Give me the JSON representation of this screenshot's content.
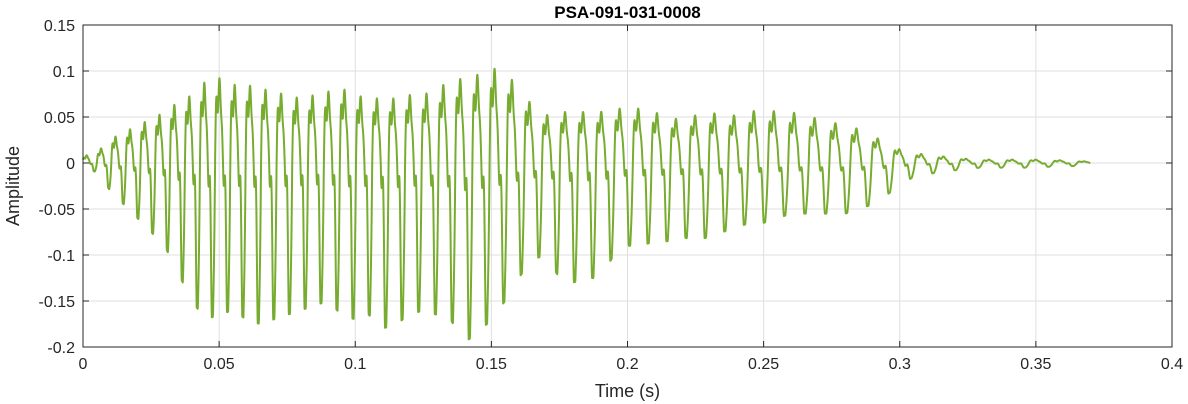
{
  "chart_data": {
    "type": "line",
    "title": "PSA-091-031-0008",
    "xlabel": "Time (s)",
    "ylabel": "Amplitude",
    "xlim": [
      0,
      0.4
    ],
    "ylim": [
      -0.2,
      0.15
    ],
    "xticks": [
      "0",
      "0.05",
      "0.1",
      "0.15",
      "0.2",
      "0.25",
      "0.3",
      "0.35",
      "0.4"
    ],
    "yticks": [
      "0.15",
      "0.1",
      "0.05",
      "0",
      "-0.05",
      "-0.1",
      "-0.15",
      "-0.2"
    ],
    "grid": true,
    "line_color": "#77AC30",
    "series": [
      {
        "x_range": [
          0,
          0.37
        ],
        "envelope": {
          "t": [
            0,
            0.005,
            0.01,
            0.015,
            0.02,
            0.025,
            0.03,
            0.035,
            0.04,
            0.045,
            0.05,
            0.055,
            0.06,
            0.065,
            0.07,
            0.075,
            0.08,
            0.085,
            0.09,
            0.095,
            0.1,
            0.105,
            0.11,
            0.115,
            0.12,
            0.125,
            0.13,
            0.135,
            0.14,
            0.145,
            0.15,
            0.155,
            0.16,
            0.165,
            0.17,
            0.175,
            0.18,
            0.185,
            0.19,
            0.195,
            0.2,
            0.205,
            0.21,
            0.215,
            0.22,
            0.225,
            0.23,
            0.235,
            0.24,
            0.245,
            0.25,
            0.255,
            0.26,
            0.265,
            0.27,
            0.275,
            0.28,
            0.285,
            0.29,
            0.295,
            0.3,
            0.305,
            0.31,
            0.315,
            0.32,
            0.325,
            0.33,
            0.335,
            0.34,
            0.345,
            0.35,
            0.355,
            0.36,
            0.365,
            0.37
          ],
          "max": [
            0.01,
            0.015,
            0.035,
            0.045,
            0.055,
            0.065,
            0.075,
            0.09,
            0.1,
            0.12,
            0.125,
            0.115,
            0.115,
            0.11,
            0.105,
            0.1,
            0.095,
            0.1,
            0.105,
            0.11,
            0.1,
            0.095,
            0.095,
            0.095,
            0.1,
            0.1,
            0.11,
            0.12,
            0.125,
            0.13,
            0.14,
            0.135,
            0.11,
            0.085,
            0.07,
            0.075,
            0.075,
            0.075,
            0.075,
            0.08,
            0.08,
            0.08,
            0.075,
            0.065,
            0.065,
            0.07,
            0.075,
            0.07,
            0.07,
            0.075,
            0.08,
            0.075,
            0.075,
            0.07,
            0.065,
            0.06,
            0.055,
            0.05,
            0.04,
            0.03,
            0.02,
            0.015,
            0.012,
            0.01,
            0.008,
            0.006,
            0.005,
            0.005,
            0.005,
            0.005,
            0.005,
            0.004,
            0.004,
            0.003,
            0.002
          ],
          "min": [
            -0.005,
            -0.01,
            -0.03,
            -0.045,
            -0.06,
            -0.075,
            -0.09,
            -0.12,
            -0.15,
            -0.17,
            -0.165,
            -0.16,
            -0.17,
            -0.175,
            -0.17,
            -0.165,
            -0.16,
            -0.155,
            -0.15,
            -0.165,
            -0.17,
            -0.165,
            -0.18,
            -0.175,
            -0.165,
            -0.16,
            -0.165,
            -0.17,
            -0.195,
            -0.185,
            -0.17,
            -0.15,
            -0.125,
            -0.105,
            -0.1,
            -0.125,
            -0.13,
            -0.125,
            -0.125,
            -0.1,
            -0.09,
            -0.09,
            -0.085,
            -0.085,
            -0.08,
            -0.085,
            -0.08,
            -0.075,
            -0.07,
            -0.065,
            -0.065,
            -0.06,
            -0.055,
            -0.055,
            -0.055,
            -0.055,
            -0.055,
            -0.05,
            -0.045,
            -0.035,
            -0.025,
            -0.015,
            -0.012,
            -0.01,
            -0.008,
            -0.006,
            -0.005,
            -0.005,
            -0.005,
            -0.005,
            -0.005,
            -0.004,
            -0.004,
            -0.003,
            -0.002
          ]
        }
      }
    ]
  }
}
